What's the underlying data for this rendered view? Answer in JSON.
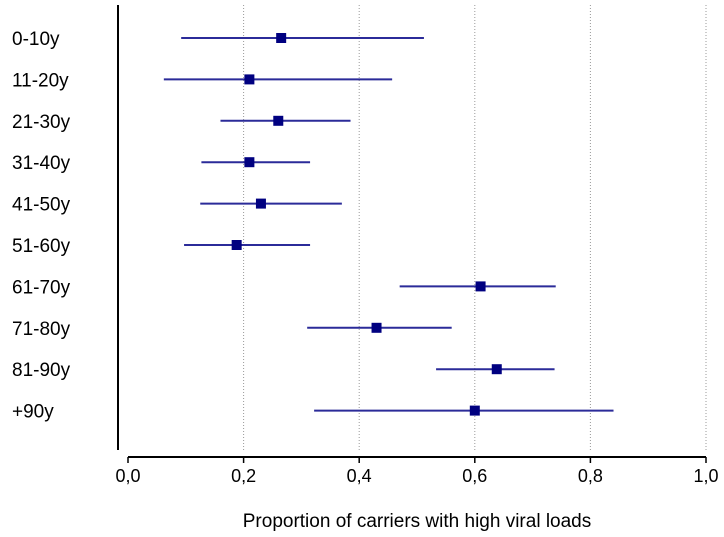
{
  "chart_data": {
    "type": "forest",
    "xlabel": "Proportion of carriers with high viral loads",
    "xlim": [
      0.0,
      1.0
    ],
    "xticks": [
      0.0,
      0.2,
      0.4,
      0.6,
      0.8,
      1.0
    ],
    "xtick_labels": [
      "0,0",
      "0,2",
      "0,4",
      "0,6",
      "0,8",
      "1,0"
    ],
    "grid": "vertical dotted",
    "categories": [
      "0-10y",
      "11-20y",
      "21-30y",
      "31-40y",
      "41-50y",
      "51-60y",
      "61-70y",
      "71-80y",
      "81-90y",
      "+90y"
    ],
    "estimates": [
      0.265,
      0.21,
      0.26,
      0.21,
      0.23,
      0.188,
      0.61,
      0.43,
      0.638,
      0.6
    ],
    "ci_lower": [
      0.092,
      0.062,
      0.16,
      0.127,
      0.125,
      0.097,
      0.47,
      0.31,
      0.533,
      0.322
    ],
    "ci_upper": [
      0.512,
      0.457,
      0.385,
      0.315,
      0.37,
      0.315,
      0.74,
      0.56,
      0.738,
      0.84
    ],
    "colors": {
      "marker": "#000080",
      "whisker": "#2b2b99",
      "grid": "#999999",
      "axis": "#000000"
    }
  }
}
